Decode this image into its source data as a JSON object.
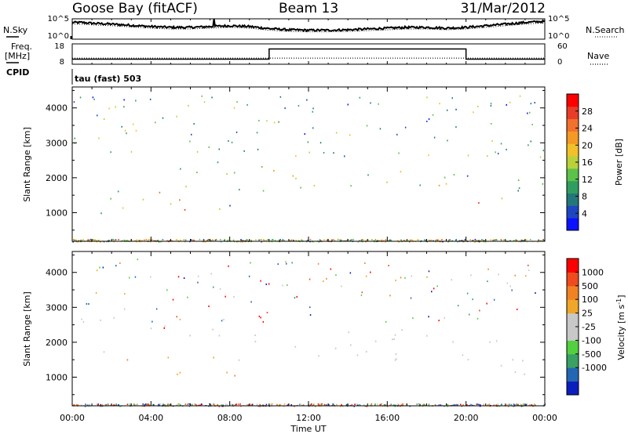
{
  "header": {
    "station": "Goose Bay (fitACF)",
    "beam": "Beam 13",
    "date": "31/Mar/2012",
    "program": "tau (fast) 503"
  },
  "strip_labels": {
    "nsky": "N.Sky",
    "nsearch": "N.Search",
    "freq_top": "Freq.",
    "freq_unit": "[MHz]",
    "nave": "Nave",
    "cpid": "CPID"
  },
  "chart_data": [
    {
      "type": "line",
      "name": "noise-strip",
      "ylabel_left": "N.Sky",
      "ylabel_right": "N.Search",
      "yticks_left": [
        "10^5",
        "10^0"
      ],
      "yticks_right": [
        "10^5",
        "10^0"
      ],
      "x_range_hours": [
        0,
        24
      ],
      "x_hours": [
        0,
        0.5,
        1,
        2,
        3,
        4,
        5,
        6,
        7,
        8,
        9,
        10,
        11,
        12,
        13,
        14,
        15,
        16,
        17,
        18,
        19,
        20,
        21,
        22,
        23,
        24
      ],
      "log_nsky": [
        4.1,
        4.1,
        3.9,
        3.7,
        3.4,
        3.1,
        2.9,
        2.9,
        3.1,
        3.3,
        3.1,
        2.6,
        2.3,
        2.2,
        2.2,
        2.3,
        2.5,
        2.7,
        2.9,
        2.9,
        2.7,
        2.9,
        3.3,
        3.7,
        4.1,
        4.4
      ]
    },
    {
      "type": "line",
      "name": "frequency-strip",
      "ylabel": "Freq. [MHz]",
      "ylabel_right": "Nave",
      "yticks_left": [
        "18",
        "8"
      ],
      "yticks_right": [
        "60",
        "0"
      ],
      "x_range_hours": [
        0,
        24
      ],
      "freq_mhz": [
        {
          "from": 0,
          "to": 10,
          "value": 10.5
        },
        {
          "from": 10,
          "to": 20,
          "value": 15.5
        },
        {
          "from": 20,
          "to": 24,
          "value": 10.5
        }
      ],
      "nave": 18
    },
    {
      "type": "heatmap",
      "name": "power-panel",
      "ylabel": "Slant Range [km]",
      "ylim": [
        180,
        4600
      ],
      "yticks": [
        1000,
        2000,
        3000,
        4000
      ],
      "x_range_hours": [
        0,
        24
      ],
      "colorbar_label": "Power [dB]",
      "colorbar_ticks": [
        4,
        8,
        12,
        16,
        20,
        24,
        28
      ],
      "colorbar_range": [
        0,
        32
      ],
      "colorbar_colors": [
        "#0a12ff",
        "#1e46c0",
        "#23777a",
        "#2f9e60",
        "#5cc24a",
        "#b9d23a",
        "#f2c029",
        "#f49a24",
        "#f2712c",
        "#e93c28",
        "#ff0000"
      ],
      "scatter_regions": [
        {
          "t0": 1.0,
          "t1": 2.6,
          "r0": 1400,
          "r1": 1900,
          "p": 8
        },
        {
          "t0": 1.3,
          "t1": 2.2,
          "r0": 1000,
          "r1": 1400,
          "p": 12
        },
        {
          "t0": 2.0,
          "t1": 3.4,
          "r0": 1100,
          "r1": 1600,
          "p": 20
        },
        {
          "t0": 3.5,
          "t1": 7.6,
          "r0": 1100,
          "r1": 1600,
          "p": 22
        },
        {
          "t0": 4.0,
          "t1": 7.0,
          "r0": 1500,
          "r1": 1800,
          "p": 18
        },
        {
          "t0": 3.0,
          "t1": 8.5,
          "r0": 2100,
          "r1": 2500,
          "p": 12
        },
        {
          "t0": 6.5,
          "t1": 9.5,
          "r0": 1000,
          "r1": 1400,
          "p": 10
        },
        {
          "t0": 8.0,
          "t1": 10.0,
          "r0": 1500,
          "r1": 2500,
          "p": 10
        },
        {
          "t0": 10.0,
          "t1": 20.0,
          "r0": 1600,
          "r1": 2300,
          "p": 16
        },
        {
          "t0": 20.0,
          "t1": 22.0,
          "r0": 1100,
          "r1": 1500,
          "p": 20
        },
        {
          "t0": 20.0,
          "t1": 24.0,
          "r0": 1400,
          "r1": 2100,
          "p": 9
        }
      ]
    },
    {
      "type": "heatmap",
      "name": "velocity-panel",
      "ylabel": "Slant Range [km]",
      "ylim": [
        180,
        4600
      ],
      "yticks": [
        1000,
        2000,
        3000,
        4000
      ],
      "x_range_hours": [
        0,
        24
      ],
      "colorbar_label": "Velocity [m s^-1]",
      "colorbar_ticks": [
        "1000",
        "500",
        "100",
        "25",
        "-25",
        "-100",
        "-500",
        "-1000"
      ],
      "colorbar_colors": [
        "#0a1ebe",
        "#2366b4",
        "#3aa063",
        "#52d040",
        "#c8c8c8",
        "#c8c8c8",
        "#f0a628",
        "#f08224",
        "#f04a1e",
        "#ff0000"
      ],
      "scatter_regions": [
        {
          "t0": 1.0,
          "t1": 2.6,
          "r0": 1400,
          "r1": 1800,
          "v": "mixed"
        },
        {
          "t0": 2.0,
          "t1": 8.5,
          "r0": 1000,
          "r1": 1600,
          "v": "-300"
        },
        {
          "t0": 3.0,
          "t1": 9.5,
          "r0": 1900,
          "r1": 2500,
          "v": "0"
        },
        {
          "t0": 10.0,
          "t1": 20.0,
          "r0": 1500,
          "r1": 2400,
          "v": "0"
        },
        {
          "t0": 20.0,
          "t1": 24.0,
          "r0": 1100,
          "r1": 2100,
          "v": "0"
        }
      ]
    }
  ],
  "x_axis": {
    "ticks": [
      "00:00",
      "04:00",
      "08:00",
      "12:00",
      "16:00",
      "20:00",
      "00:00"
    ],
    "label": "Time UT"
  }
}
